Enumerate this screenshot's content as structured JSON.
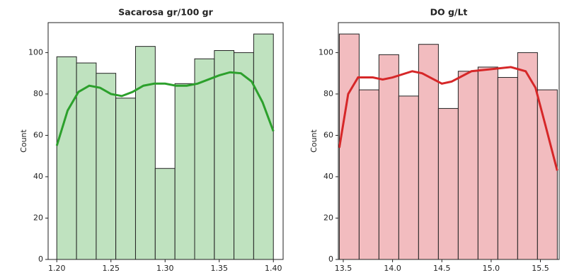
{
  "chart_data": [
    {
      "type": "histogram",
      "title": "Sacarosa gr/100 gr",
      "ylabel": "Count",
      "bins": [
        1.2,
        1.2182,
        1.2364,
        1.2545,
        1.2727,
        1.2909,
        1.3091,
        1.3273,
        1.3455,
        1.3636,
        1.3818,
        1.4
      ],
      "values": [
        98,
        95,
        90,
        78,
        103,
        44,
        85,
        97,
        101,
        100,
        109
      ],
      "color": "#bfe2bf",
      "edgecolor": "#222222",
      "kde": {
        "color": "#2ca02c",
        "x": [
          1.2,
          1.21,
          1.22,
          1.23,
          1.24,
          1.25,
          1.26,
          1.27,
          1.28,
          1.29,
          1.3,
          1.31,
          1.32,
          1.33,
          1.34,
          1.35,
          1.36,
          1.37,
          1.38,
          1.39,
          1.4
        ],
        "values": [
          55,
          72,
          81,
          84,
          83,
          80,
          79,
          81,
          84,
          85,
          85,
          84,
          84,
          85,
          87,
          89,
          90.5,
          90,
          86,
          76,
          62
        ]
      },
      "xlim": [
        1.192,
        1.409
      ],
      "ylim": [
        0,
        114.5
      ],
      "xticks": [
        {
          "value": 1.2,
          "label": "1.20"
        },
        1.25,
        {
          "value": 1.3,
          "label": "1.30"
        },
        1.35,
        {
          "value": 1.4,
          "label": "1.40"
        }
      ],
      "yticks": [
        0,
        20,
        40,
        60,
        80,
        100
      ]
    },
    {
      "type": "histogram",
      "title": "DO g/Lt",
      "ylabel": "Count",
      "bins": [
        13.46,
        13.661,
        13.862,
        14.063,
        14.264,
        14.465,
        14.666,
        14.867,
        15.068,
        15.269,
        15.47,
        15.671
      ],
      "values": [
        109,
        82,
        99,
        79,
        104,
        73,
        91,
        93,
        88,
        100,
        82
      ],
      "color": "#f2bcbf",
      "edgecolor": "#222222",
      "kde": {
        "color": "#d62728",
        "x": [
          13.46,
          13.55,
          13.65,
          13.8,
          13.9,
          14.0,
          14.2,
          14.3,
          14.5,
          14.6,
          14.8,
          15.0,
          15.2,
          15.35,
          15.45,
          15.55,
          15.67
        ],
        "values": [
          54,
          80,
          88,
          88,
          87,
          88,
          91,
          90,
          85,
          86,
          91,
          92,
          93,
          91,
          83,
          65,
          43
        ]
      },
      "xlim": [
        13.45,
        15.69
      ],
      "ylim": [
        0,
        114.5
      ],
      "xticks": [
        13.5,
        {
          "value": 14.0,
          "label": "14.0"
        },
        14.5,
        {
          "value": 15.0,
          "label": "15.0"
        },
        15.5
      ],
      "yticks": [
        0,
        20,
        40,
        60,
        80,
        100
      ]
    }
  ]
}
